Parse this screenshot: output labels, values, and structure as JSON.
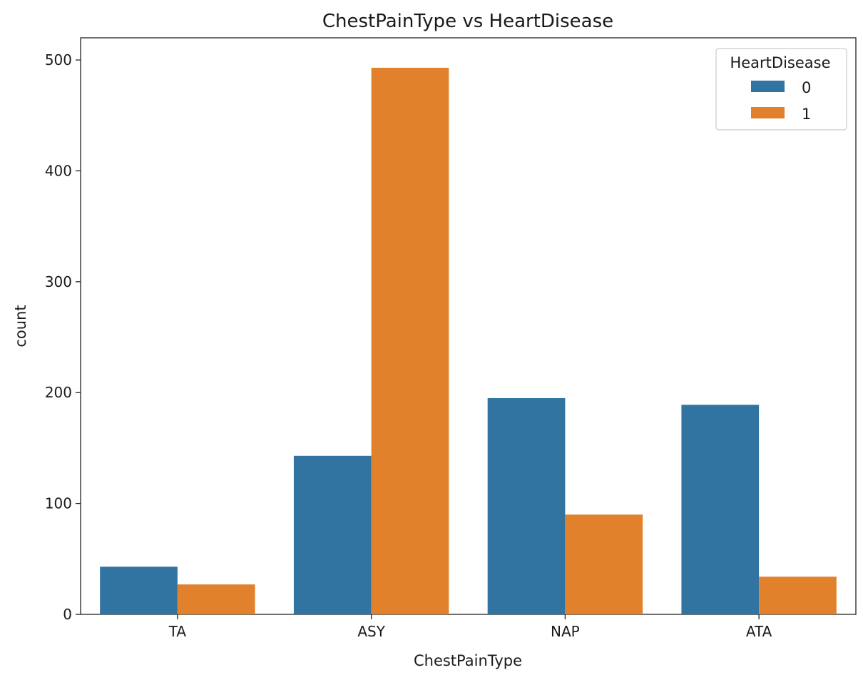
{
  "chart_data": {
    "type": "bar",
    "title": "ChestPainType vs HeartDisease",
    "xlabel": "ChestPainType",
    "ylabel": "count",
    "categories": [
      "TA",
      "ASY",
      "NAP",
      "ATA"
    ],
    "ylim": [
      0,
      520
    ],
    "yticks": [
      0,
      100,
      200,
      300,
      400,
      500
    ],
    "series": [
      {
        "name": "0",
        "color": "#3274a1",
        "values": [
          43,
          143,
          195,
          189
        ]
      },
      {
        "name": "1",
        "color": "#e1812c",
        "values": [
          27,
          493,
          90,
          34
        ]
      }
    ],
    "legend": {
      "title": "HeartDisease",
      "placement": "top-right"
    },
    "grid": false
  }
}
